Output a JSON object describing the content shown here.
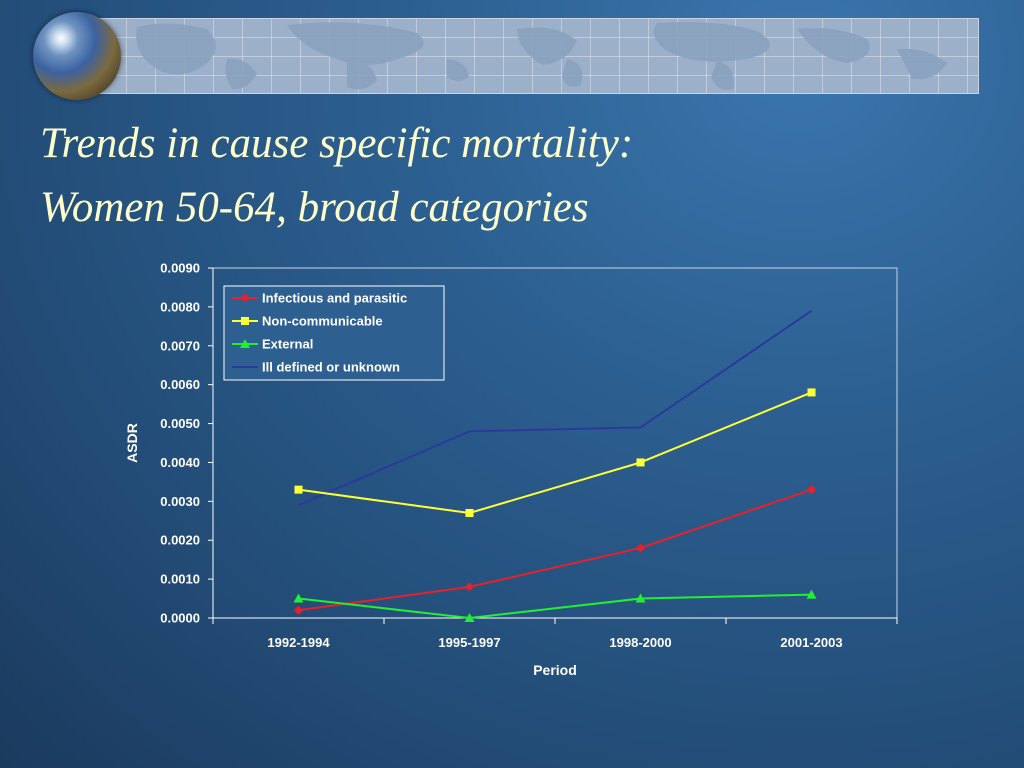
{
  "slide": {
    "title_line1": "Trends in cause specific mortality:",
    "title_line2": "Women 50-64, broad categories"
  },
  "colors": {
    "title": "#ffffcc",
    "axis": "#ffffff",
    "infectious": "#e8202a",
    "noncommunicable": "#ffff33",
    "external": "#22ee33",
    "ill_defined": "#2a3a9a"
  },
  "chart_data": {
    "type": "line",
    "title": "",
    "xlabel": "Period",
    "ylabel": "ASDR",
    "categories": [
      "1992-1994",
      "1995-1997",
      "1998-2000",
      "2001-2003"
    ],
    "ylim": [
      0,
      0.009
    ],
    "yticks": [
      "0.0000",
      "0.0010",
      "0.0020",
      "0.0030",
      "0.0040",
      "0.0050",
      "0.0060",
      "0.0070",
      "0.0080",
      "0.0090"
    ],
    "grid": false,
    "legend_position": "top-left",
    "series": [
      {
        "name": "Infectious and parasitic",
        "marker": "diamond",
        "color": "#e8202a",
        "values": [
          0.0002,
          0.0008,
          0.0018,
          0.0033
        ]
      },
      {
        "name": "Non-communicable",
        "marker": "square",
        "color": "#ffff33",
        "values": [
          0.0033,
          0.0027,
          0.004,
          0.0058
        ]
      },
      {
        "name": "External",
        "marker": "triangle",
        "color": "#22ee33",
        "values": [
          0.0005,
          0.0,
          0.0005,
          0.0006
        ]
      },
      {
        "name": "Ill defined or unknown",
        "marker": "none",
        "color": "#2a3a9a",
        "values": [
          0.0029,
          0.0048,
          0.0049,
          0.0079
        ]
      }
    ]
  }
}
